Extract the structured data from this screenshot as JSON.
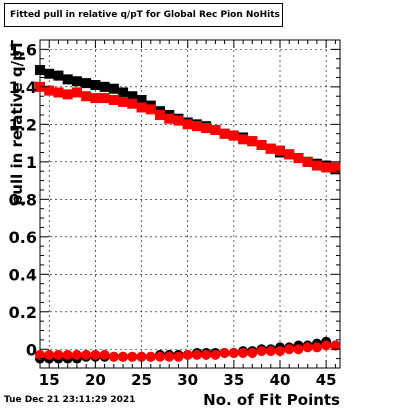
{
  "title": "Fitted pull in relative q/pT for Global Rec Pion NoHits",
  "timestamp": "Tue Dec 21 23:11:29 2021",
  "chart_data": {
    "type": "scatter",
    "xlabel": "No. of Fit Points",
    "ylabel": "pull in relative q/pT",
    "xlim": [
      14,
      46.5
    ],
    "ylim": [
      -0.1,
      1.65
    ],
    "x_ticks": [
      15,
      20,
      25,
      30,
      35,
      40,
      45
    ],
    "y_ticks": [
      0,
      0.2,
      0.4,
      0.6,
      0.8,
      1,
      1.2,
      1.4,
      1.6
    ],
    "y_tick_labels": [
      "0",
      "0.2",
      "0.4",
      "0.6",
      "0.8",
      "1",
      "1.2",
      "1.4",
      "1.6"
    ],
    "grid": true,
    "x": [
      14,
      15,
      16,
      17,
      18,
      19,
      20,
      21,
      22,
      23,
      24,
      25,
      26,
      27,
      28,
      29,
      30,
      31,
      32,
      33,
      34,
      35,
      36,
      37,
      38,
      39,
      40,
      41,
      42,
      43,
      44,
      45,
      46
    ],
    "series": [
      {
        "marker": "square",
        "color": "#000000",
        "values": [
          1.49,
          1.47,
          1.46,
          1.44,
          1.43,
          1.42,
          1.41,
          1.4,
          1.39,
          1.37,
          1.35,
          1.33,
          1.3,
          1.27,
          1.25,
          1.23,
          1.21,
          1.2,
          1.19,
          1.17,
          1.15,
          1.14,
          1.13,
          1.11,
          1.09,
          1.07,
          1.05,
          1.04,
          1.02,
          1.0,
          0.99,
          0.98,
          0.96
        ]
      },
      {
        "marker": "square",
        "color": "#ff0000",
        "values": [
          1.4,
          1.38,
          1.37,
          1.36,
          1.37,
          1.35,
          1.34,
          1.34,
          1.33,
          1.32,
          1.31,
          1.29,
          1.28,
          1.25,
          1.23,
          1.22,
          1.2,
          1.19,
          1.18,
          1.17,
          1.15,
          1.14,
          1.12,
          1.11,
          1.09,
          1.07,
          1.06,
          1.04,
          1.02,
          1.0,
          0.98,
          0.97,
          0.97
        ]
      },
      {
        "marker": "circle",
        "color": "#000000",
        "values": [
          -0.05,
          -0.05,
          -0.05,
          -0.05,
          -0.05,
          -0.04,
          -0.04,
          -0.04,
          -0.04,
          -0.04,
          -0.04,
          -0.04,
          -0.04,
          -0.03,
          -0.03,
          -0.03,
          -0.03,
          -0.02,
          -0.02,
          -0.02,
          -0.02,
          -0.02,
          -0.01,
          -0.01,
          0.0,
          0.0,
          0.01,
          0.01,
          0.02,
          0.02,
          0.03,
          0.04,
          0.02
        ]
      },
      {
        "marker": "circle",
        "color": "#ff0000",
        "values": [
          -0.03,
          -0.03,
          -0.03,
          -0.03,
          -0.03,
          -0.03,
          -0.03,
          -0.03,
          -0.04,
          -0.04,
          -0.04,
          -0.04,
          -0.04,
          -0.04,
          -0.04,
          -0.04,
          -0.03,
          -0.03,
          -0.03,
          -0.03,
          -0.02,
          -0.02,
          -0.02,
          -0.02,
          -0.01,
          -0.01,
          -0.01,
          0.0,
          0.0,
          0.01,
          0.01,
          0.02,
          0.02
        ]
      }
    ]
  }
}
